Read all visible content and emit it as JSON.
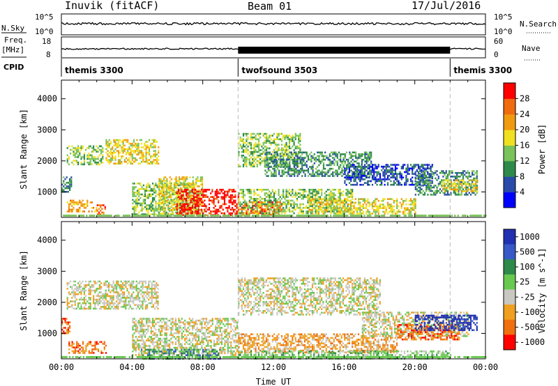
{
  "header": {
    "station": "Inuvik (fitACF)",
    "beam": "Beam 01",
    "date": "17/Jul/2016"
  },
  "strips": {
    "nsky_label": "N.Sky",
    "nsky_ticks": [
      "10^5",
      "10^0"
    ],
    "nsearch_label": "N.Search",
    "nsearch_ticks": [
      "10^5",
      "10^0"
    ],
    "freq_label_1": "Freq.",
    "freq_label_2": "[MHz]",
    "freq_ticks": [
      "18",
      "8"
    ],
    "nave_label": "Nave",
    "nave_ticks": [
      "60",
      "0"
    ],
    "cpid_label": "CPID",
    "cpid_segments": [
      {
        "name": "themis 3300",
        "start_h": 0,
        "end_h": 10
      },
      {
        "name": "twofsound 3503",
        "start_h": 10,
        "end_h": 22
      },
      {
        "name": "themis 3300",
        "start_h": 22,
        "end_h": 24
      }
    ]
  },
  "chart_data": [
    {
      "type": "heatmap",
      "title": "",
      "xlabel": "",
      "ylabel": "Slant Range [km]",
      "xlim": [
        0,
        24
      ],
      "ylim": [
        180,
        4600
      ],
      "yticks": [
        "1000",
        "2000",
        "3000",
        "4000"
      ],
      "colorbar": {
        "label": "Power [dB]",
        "ticks": [
          "4",
          "8",
          "12",
          "16",
          "20",
          "24",
          "28"
        ],
        "colors": [
          "#0000ff",
          "#2a4aaa",
          "#2e8a4a",
          "#7ac35a",
          "#f0e020",
          "#f09a10",
          "#f06a10",
          "#ff0000"
        ]
      },
      "regions": [
        {
          "t0": 0.3,
          "t1": 2.3,
          "r0": 1900,
          "r1": 2500,
          "level": 3
        },
        {
          "t0": 2.5,
          "t1": 5.5,
          "r0": 1900,
          "r1": 2700,
          "level": 4
        },
        {
          "t0": 0.0,
          "t1": 0.6,
          "r0": 1000,
          "r1": 1500,
          "level": 2
        },
        {
          "t0": 0.3,
          "t1": 2.0,
          "r0": 350,
          "r1": 750,
          "level": 5
        },
        {
          "t0": 2.0,
          "t1": 2.5,
          "r0": 300,
          "r1": 600,
          "level": 6
        },
        {
          "t0": 4.0,
          "t1": 7.5,
          "r0": 300,
          "r1": 1300,
          "level": 3
        },
        {
          "t0": 5.5,
          "t1": 8.0,
          "r0": 300,
          "r1": 1500,
          "level": 4
        },
        {
          "t0": 6.5,
          "t1": 10.0,
          "r0": 250,
          "r1": 1100,
          "level": 7
        },
        {
          "t0": 10.0,
          "t1": 12.5,
          "r0": 250,
          "r1": 700,
          "level": 6
        },
        {
          "t0": 10.0,
          "t1": 16.5,
          "r0": 300,
          "r1": 1100,
          "level": 3
        },
        {
          "t0": 14.0,
          "t1": 20.0,
          "r0": 300,
          "r1": 800,
          "level": 4
        },
        {
          "t0": 10.0,
          "t1": 13.5,
          "r0": 1800,
          "r1": 2900,
          "level": 3
        },
        {
          "t0": 11.5,
          "t1": 17.5,
          "r0": 1500,
          "r1": 2300,
          "level": 2
        },
        {
          "t0": 16.0,
          "t1": 21.0,
          "r0": 1200,
          "r1": 1900,
          "level": 1
        },
        {
          "t0": 20.0,
          "t1": 23.5,
          "r0": 900,
          "r1": 1700,
          "level": 2
        },
        {
          "t0": 21.5,
          "t1": 23.5,
          "r0": 1000,
          "r1": 1400,
          "level": 4
        }
      ]
    },
    {
      "type": "heatmap",
      "title": "",
      "xlabel": "Time UT",
      "ylabel": "Slant Range [km]",
      "xlim": [
        0,
        24
      ],
      "ylim": [
        180,
        4600
      ],
      "xticks": [
        "00:00",
        "04:00",
        "08:00",
        "12:00",
        "16:00",
        "20:00",
        "00:00"
      ],
      "yticks": [
        "1000",
        "2000",
        "3000",
        "4000"
      ],
      "colorbar": {
        "label": "Velocity [m s^-1]",
        "ticks": [
          "1000",
          "500",
          "100",
          "25",
          "-25",
          "-100",
          "-500",
          "-1000"
        ],
        "colors": [
          "#2030b0",
          "#3858c8",
          "#2e8a4a",
          "#68c850",
          "#c8c8c0",
          "#f0a020",
          "#f07010",
          "#ff0000"
        ]
      },
      "regions": [
        {
          "t0": 0.3,
          "t1": 5.5,
          "r0": 1800,
          "r1": 2700,
          "level": 4
        },
        {
          "t0": 0.0,
          "t1": 0.5,
          "r0": 1000,
          "r1": 1500,
          "level": 6
        },
        {
          "t0": 0.4,
          "t1": 2.5,
          "r0": 350,
          "r1": 750,
          "level": 6
        },
        {
          "t0": 4.0,
          "t1": 10.0,
          "r0": 300,
          "r1": 1500,
          "level": 4
        },
        {
          "t0": 4.5,
          "t1": 9.0,
          "r0": 200,
          "r1": 500,
          "level": 2
        },
        {
          "t0": 10.0,
          "t1": 19.0,
          "r0": 400,
          "r1": 1000,
          "level": 5
        },
        {
          "t0": 10.0,
          "t1": 22.0,
          "r0": 200,
          "r1": 450,
          "level": 3
        },
        {
          "t0": 10.0,
          "t1": 18.0,
          "r0": 1600,
          "r1": 2800,
          "level": 4
        },
        {
          "t0": 17.0,
          "t1": 23.0,
          "r0": 900,
          "r1": 1700,
          "level": 4
        },
        {
          "t0": 19.0,
          "t1": 22.5,
          "r0": 800,
          "r1": 1300,
          "level": 6
        },
        {
          "t0": 20.0,
          "t1": 23.5,
          "r0": 1100,
          "r1": 1600,
          "level": 0
        }
      ]
    }
  ]
}
